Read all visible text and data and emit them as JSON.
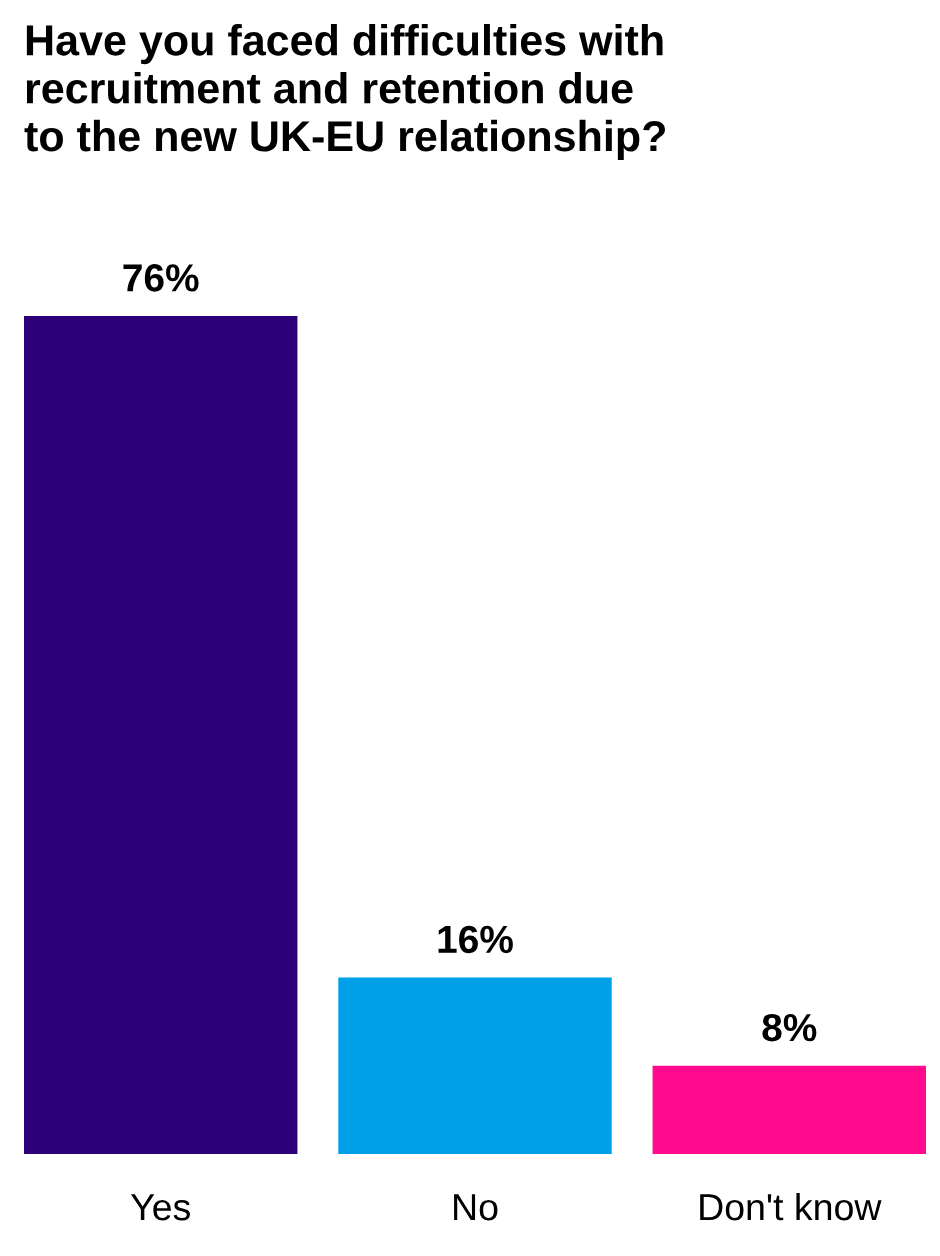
{
  "chart_data": {
    "type": "bar",
    "title": "Have you faced difficulties with\nrecruitment and retention due\nto the new UK-EU relationship?",
    "categories": [
      "Yes",
      "No",
      "Don't know"
    ],
    "values": [
      76,
      16,
      8
    ],
    "colors": [
      "#2e0078",
      "#00a0e9",
      "#ff0a8c"
    ],
    "value_labels": [
      "76%",
      "16%",
      "8%"
    ],
    "grid": false,
    "legend": false
  }
}
